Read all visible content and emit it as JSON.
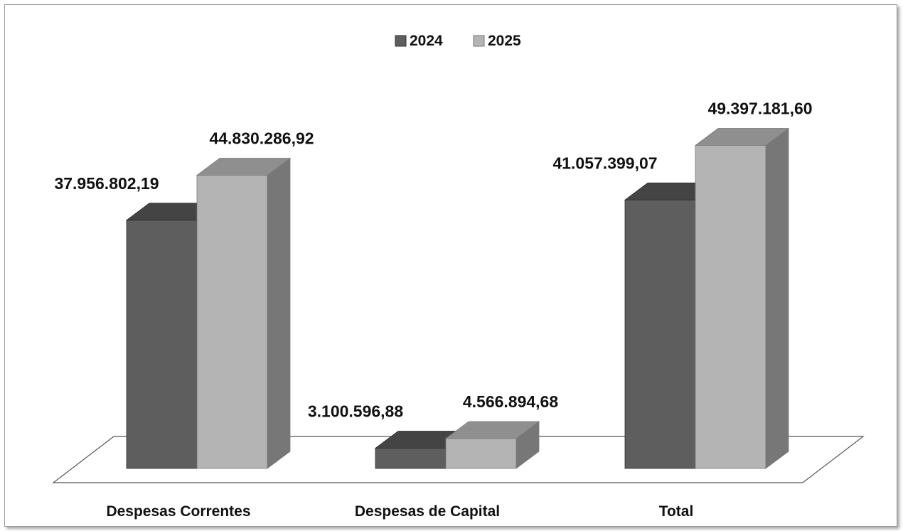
{
  "chart_data": {
    "type": "bar",
    "title": "",
    "xlabel": "",
    "ylabel": "",
    "grid": false,
    "legend": "top-center",
    "style": "3d-clustered-column",
    "categories": [
      "Despesas Correntes",
      "Despesas de Capital",
      "Total"
    ],
    "series": [
      {
        "name": "2024",
        "color": "#5e5e5e",
        "values": [
          37956802.19,
          3100596.88,
          41057399.07
        ],
        "labels": [
          "37.956.802,19",
          "3.100.596,88",
          "41.057.399,07"
        ]
      },
      {
        "name": "2025",
        "color": "#b4b4b4",
        "values": [
          44830286.92,
          4566894.68,
          49397181.6
        ],
        "labels": [
          "44.830.286,92",
          "4.566.894,68",
          "49.397.181,60"
        ]
      }
    ],
    "ylim": [
      0,
      55000000
    ]
  }
}
